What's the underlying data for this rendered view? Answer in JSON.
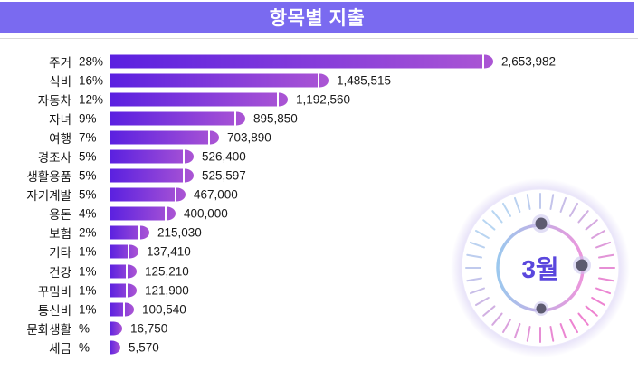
{
  "header": {
    "title": "항목별 지출",
    "bg_color": "#7a6af0"
  },
  "colors": {
    "bar_gradient_start": "#5a20e0",
    "bar_gradient_end": "#ab55d4",
    "axis_line": "#bdbdbd",
    "value_text": "#1a1a1a",
    "dial_blue": "#b8d6f2",
    "dial_pink": "#ee82d0",
    "month_text": "#5a47dd"
  },
  "chart_data": {
    "type": "bar",
    "orientation": "horizontal",
    "title": "항목별 지출",
    "xlabel": "",
    "ylabel": "",
    "legend": "none",
    "grid": "off",
    "xlim": [
      0,
      2653982
    ],
    "categories": [
      "주거",
      "식비",
      "자동차",
      "자녀",
      "여행",
      "경조사",
      "생활용품",
      "자기계발",
      "용돈",
      "보험",
      "기타",
      "건강",
      "꾸밈비",
      "통신비",
      "문화생활",
      "세금"
    ],
    "percent_labels": [
      "28%",
      "16%",
      "12%",
      "9%",
      "7%",
      "5%",
      "5%",
      "5%",
      "4%",
      "2%",
      "1%",
      "1%",
      "1%",
      "1%",
      "%",
      "%"
    ],
    "values": [
      2653982,
      1485515,
      1192560,
      895850,
      703890,
      526400,
      525597,
      467000,
      400000,
      215030,
      137410,
      125210,
      121900,
      100540,
      16750,
      5570
    ],
    "value_labels": [
      "2,653,982",
      "1,485,515",
      "1,192,560",
      "895,850",
      "703,890",
      "526,400",
      "525,597",
      "467,000",
      "400,000",
      "215,030",
      "137,410",
      "125,210",
      "121,900",
      "100,540",
      "16,750",
      "5,570"
    ]
  },
  "clock": {
    "label": "3월"
  }
}
